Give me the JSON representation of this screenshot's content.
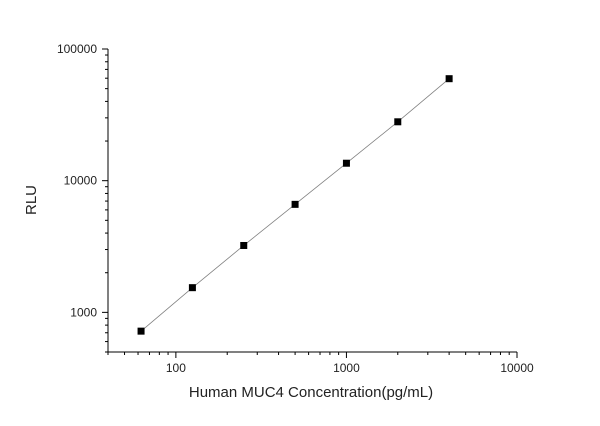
{
  "chart_data": {
    "type": "scatter",
    "title": "",
    "xlabel": "Human MUC4 Concentration(pg/mL)",
    "ylabel": "RLU",
    "x_scale": "log",
    "y_scale": "log",
    "xlim": [
      40,
      10000
    ],
    "ylim": [
      500,
      100000
    ],
    "x_ticks": [
      100,
      1000,
      10000
    ],
    "x_tick_labels": [
      "100",
      "1000",
      "10000"
    ],
    "y_ticks": [
      1000,
      10000,
      100000
    ],
    "y_tick_labels": [
      "1000",
      "10000",
      "100000"
    ],
    "grid": false,
    "fit_line": true,
    "marker": "square",
    "colors": {
      "marker": "#000000",
      "line": "#808080",
      "axis": "#000000"
    },
    "series": [
      {
        "x": [
          62.5,
          125,
          250,
          500,
          1000,
          2000,
          4000
        ],
        "y": [
          720,
          1540,
          3220,
          6610,
          13570,
          28000,
          59500
        ]
      }
    ]
  }
}
